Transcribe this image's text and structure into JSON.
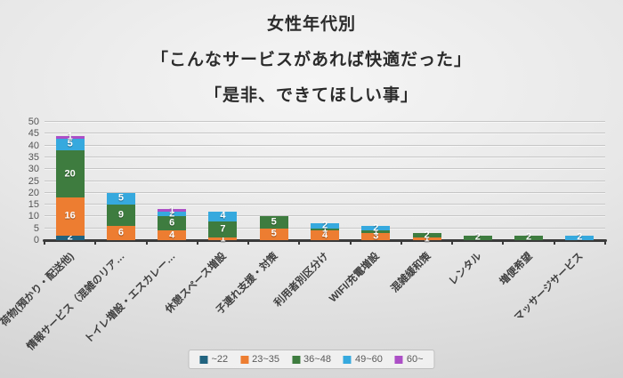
{
  "title": {
    "line1": "女性年代別",
    "line2": "「こんなサービスがあれば快適だった」",
    "line3": "「是非、できてほしい事」"
  },
  "chart_data": {
    "type": "bar",
    "stacked": true,
    "title": "女性年代別「こんなサービスがあれば快適だった」「是非、できてほしい事」",
    "xlabel": "",
    "ylabel": "",
    "ylim": [
      0,
      50
    ],
    "yticks": [
      0,
      5,
      10,
      15,
      20,
      25,
      30,
      35,
      40,
      45,
      50
    ],
    "grid": true,
    "legend_position": "bottom",
    "categories": [
      "荷物(預かり・配送他)",
      "情報サービス（混雑のリア…",
      "トイレ増設・エスカレー…",
      "休憩スペース増設",
      "子連れ支援・対策",
      "利用者別区分け",
      "WIFI/充電増設",
      "混雑緩和策",
      "レンタル",
      "増便希望",
      "マッサージサービス"
    ],
    "series": [
      {
        "name": "~22",
        "color": "#21637f",
        "values": [
          2,
          0,
          0,
          0,
          0,
          0,
          0,
          0,
          0,
          0,
          0
        ]
      },
      {
        "name": "23~35",
        "color": "#ed7d31",
        "values": [
          16,
          6,
          4,
          1,
          5,
          4,
          3,
          1,
          0,
          0,
          0
        ]
      },
      {
        "name": "36~48",
        "color": "#3e7c3f",
        "values": [
          20,
          9,
          6,
          7,
          5,
          1,
          1,
          2,
          2,
          2,
          0
        ]
      },
      {
        "name": "49~60",
        "color": "#36a9de",
        "values": [
          5,
          5,
          2,
          4,
          0,
          2,
          2,
          0,
          0,
          0,
          2
        ]
      },
      {
        "name": "60~",
        "color": "#ac4fc6",
        "values": [
          1,
          0,
          1,
          0,
          0,
          0,
          0,
          0,
          0,
          0,
          0
        ]
      }
    ],
    "totals": [
      44,
      20,
      13,
      12,
      10,
      7,
      6,
      3,
      2,
      2,
      2
    ]
  }
}
